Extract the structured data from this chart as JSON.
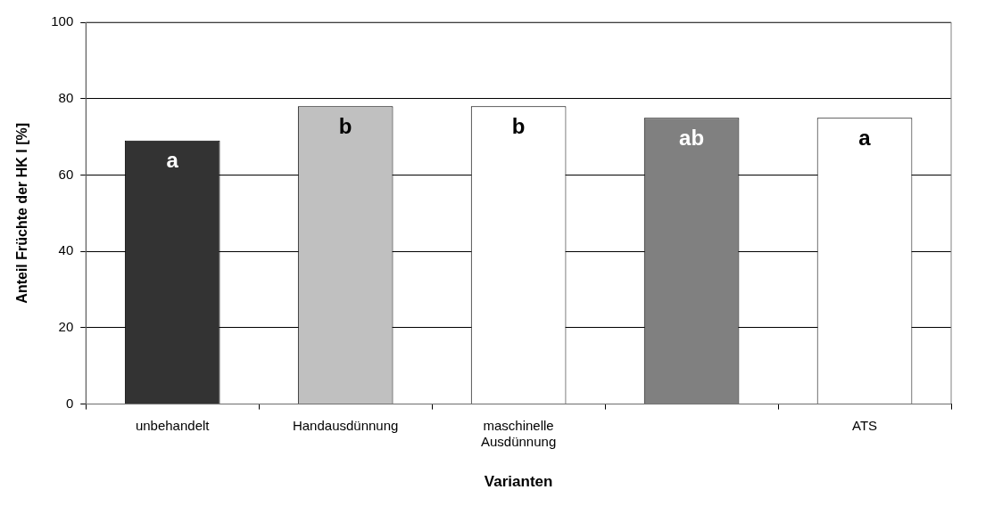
{
  "chart_data": {
    "type": "bar",
    "xlabel": "Varianten",
    "ylabel": "Anteil Früchte der HK I [%]",
    "categories": [
      "unbehandelt",
      "Handausdünnung",
      "maschinelle Ausdünnung",
      null,
      "ATS"
    ],
    "values": [
      69,
      78,
      78,
      75,
      75
    ],
    "colors": [
      "#333333",
      "#c0c0c0",
      "#ffffff",
      "#808080",
      "#ffffff"
    ],
    "value_labels": [
      "a",
      "b",
      "b",
      "ab",
      "a"
    ],
    "ylim": [
      0,
      100
    ],
    "yticks": [
      0,
      20,
      40,
      60,
      80,
      100
    ],
    "grid": "y",
    "legend": false
  }
}
